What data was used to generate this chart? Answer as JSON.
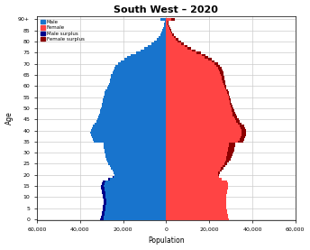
{
  "title": "South West – 2020",
  "xlabel": "Population",
  "ylabel": "Age",
  "xlim": 60000,
  "age_groups": [
    0,
    1,
    2,
    3,
    4,
    5,
    6,
    7,
    8,
    9,
    10,
    11,
    12,
    13,
    14,
    15,
    16,
    17,
    18,
    19,
    20,
    21,
    22,
    23,
    24,
    25,
    26,
    27,
    28,
    29,
    30,
    31,
    32,
    33,
    34,
    35,
    36,
    37,
    38,
    39,
    40,
    41,
    42,
    43,
    44,
    45,
    46,
    47,
    48,
    49,
    50,
    51,
    52,
    53,
    54,
    55,
    56,
    57,
    58,
    59,
    60,
    61,
    62,
    63,
    64,
    65,
    66,
    67,
    68,
    69,
    70,
    71,
    72,
    73,
    74,
    75,
    76,
    77,
    78,
    79,
    80,
    81,
    82,
    83,
    84,
    85,
    86,
    87,
    88,
    89,
    90
  ],
  "male": [
    30500,
    30200,
    30000,
    29800,
    29600,
    29500,
    29400,
    29200,
    29000,
    29100,
    29300,
    29500,
    29700,
    29900,
    30100,
    30200,
    30000,
    29500,
    27000,
    25000,
    24000,
    24200,
    24800,
    25500,
    26200,
    27000,
    27500,
    27800,
    28000,
    28200,
    28400,
    28600,
    28800,
    29000,
    29200,
    33500,
    34000,
    34500,
    35000,
    35200,
    35000,
    34500,
    34000,
    33200,
    32500,
    32000,
    31500,
    31000,
    30700,
    30500,
    30200,
    30000,
    29700,
    29500,
    29300,
    29000,
    28700,
    28500,
    28000,
    27500,
    27000,
    26500,
    26200,
    26000,
    25800,
    25500,
    25000,
    24500,
    24000,
    23500,
    22500,
    21000,
    19500,
    18000,
    16500,
    14000,
    12000,
    10000,
    8500,
    7000,
    5500,
    4500,
    3500,
    2800,
    2200,
    1800,
    1400,
    1100,
    850,
    650,
    2500
  ],
  "female": [
    29000,
    28800,
    28600,
    28400,
    28200,
    28100,
    28000,
    27900,
    27800,
    27900,
    28000,
    28100,
    28200,
    28400,
    28600,
    28800,
    28600,
    28200,
    26000,
    24500,
    24500,
    25000,
    25800,
    26800,
    27500,
    28200,
    29000,
    29800,
    30300,
    30800,
    31200,
    31500,
    31700,
    31900,
    32100,
    35800,
    36200,
    36700,
    37100,
    37300,
    37100,
    36600,
    36100,
    35100,
    34300,
    33600,
    33100,
    32600,
    32100,
    31600,
    31100,
    30700,
    30400,
    30100,
    29800,
    29600,
    29300,
    29100,
    28600,
    28100,
    27900,
    27600,
    27300,
    27100,
    26900,
    26800,
    26600,
    26300,
    25900,
    25100,
    24100,
    22600,
    21100,
    19600,
    18100,
    16100,
    13600,
    11600,
    9900,
    8300,
    6900,
    5600,
    4500,
    3700,
    3000,
    2400,
    1900,
    1500,
    1200,
    950,
    4200
  ],
  "male_color": "#1874CD",
  "female_color": "#FF4444",
  "male_surplus_color": "#00008B",
  "female_surplus_color": "#8B0000",
  "background_color": "#ffffff",
  "grid_color": "#cccccc"
}
